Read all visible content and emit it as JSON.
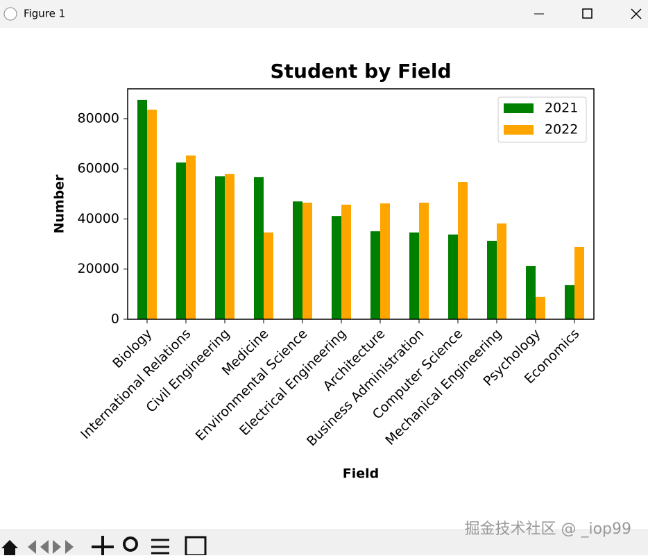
{
  "window": {
    "title": "Figure 1"
  },
  "watermark": "掘金技术社区 @ _iop99",
  "chart_data": {
    "type": "bar",
    "title": "Student by Field",
    "x_label": "Field",
    "y_label": "Number",
    "categories": [
      "Biology",
      "International Relations",
      "Civil Engineering",
      "Medicine",
      "Environmental Science",
      "Electrical Engineering",
      "Architecture",
      "Business Administration",
      "Computer Science",
      "Mechanical Engineering",
      "Psychology",
      "Economics"
    ],
    "series": [
      {
        "name": "2021",
        "color": "green",
        "values": [
          87500,
          62500,
          57000,
          56700,
          47000,
          41200,
          35100,
          34600,
          33800,
          31300,
          21300,
          13600
        ]
      },
      {
        "name": "2022",
        "color": "orange",
        "values": [
          83600,
          65300,
          57900,
          34600,
          46500,
          45700,
          46200,
          46500,
          54800,
          38200,
          8900,
          28800
        ]
      }
    ],
    "ylim": [
      0,
      91900
    ],
    "yticks": [
      0,
      20000,
      40000,
      60000,
      80000
    ],
    "grid": false,
    "legend": "upper right"
  }
}
